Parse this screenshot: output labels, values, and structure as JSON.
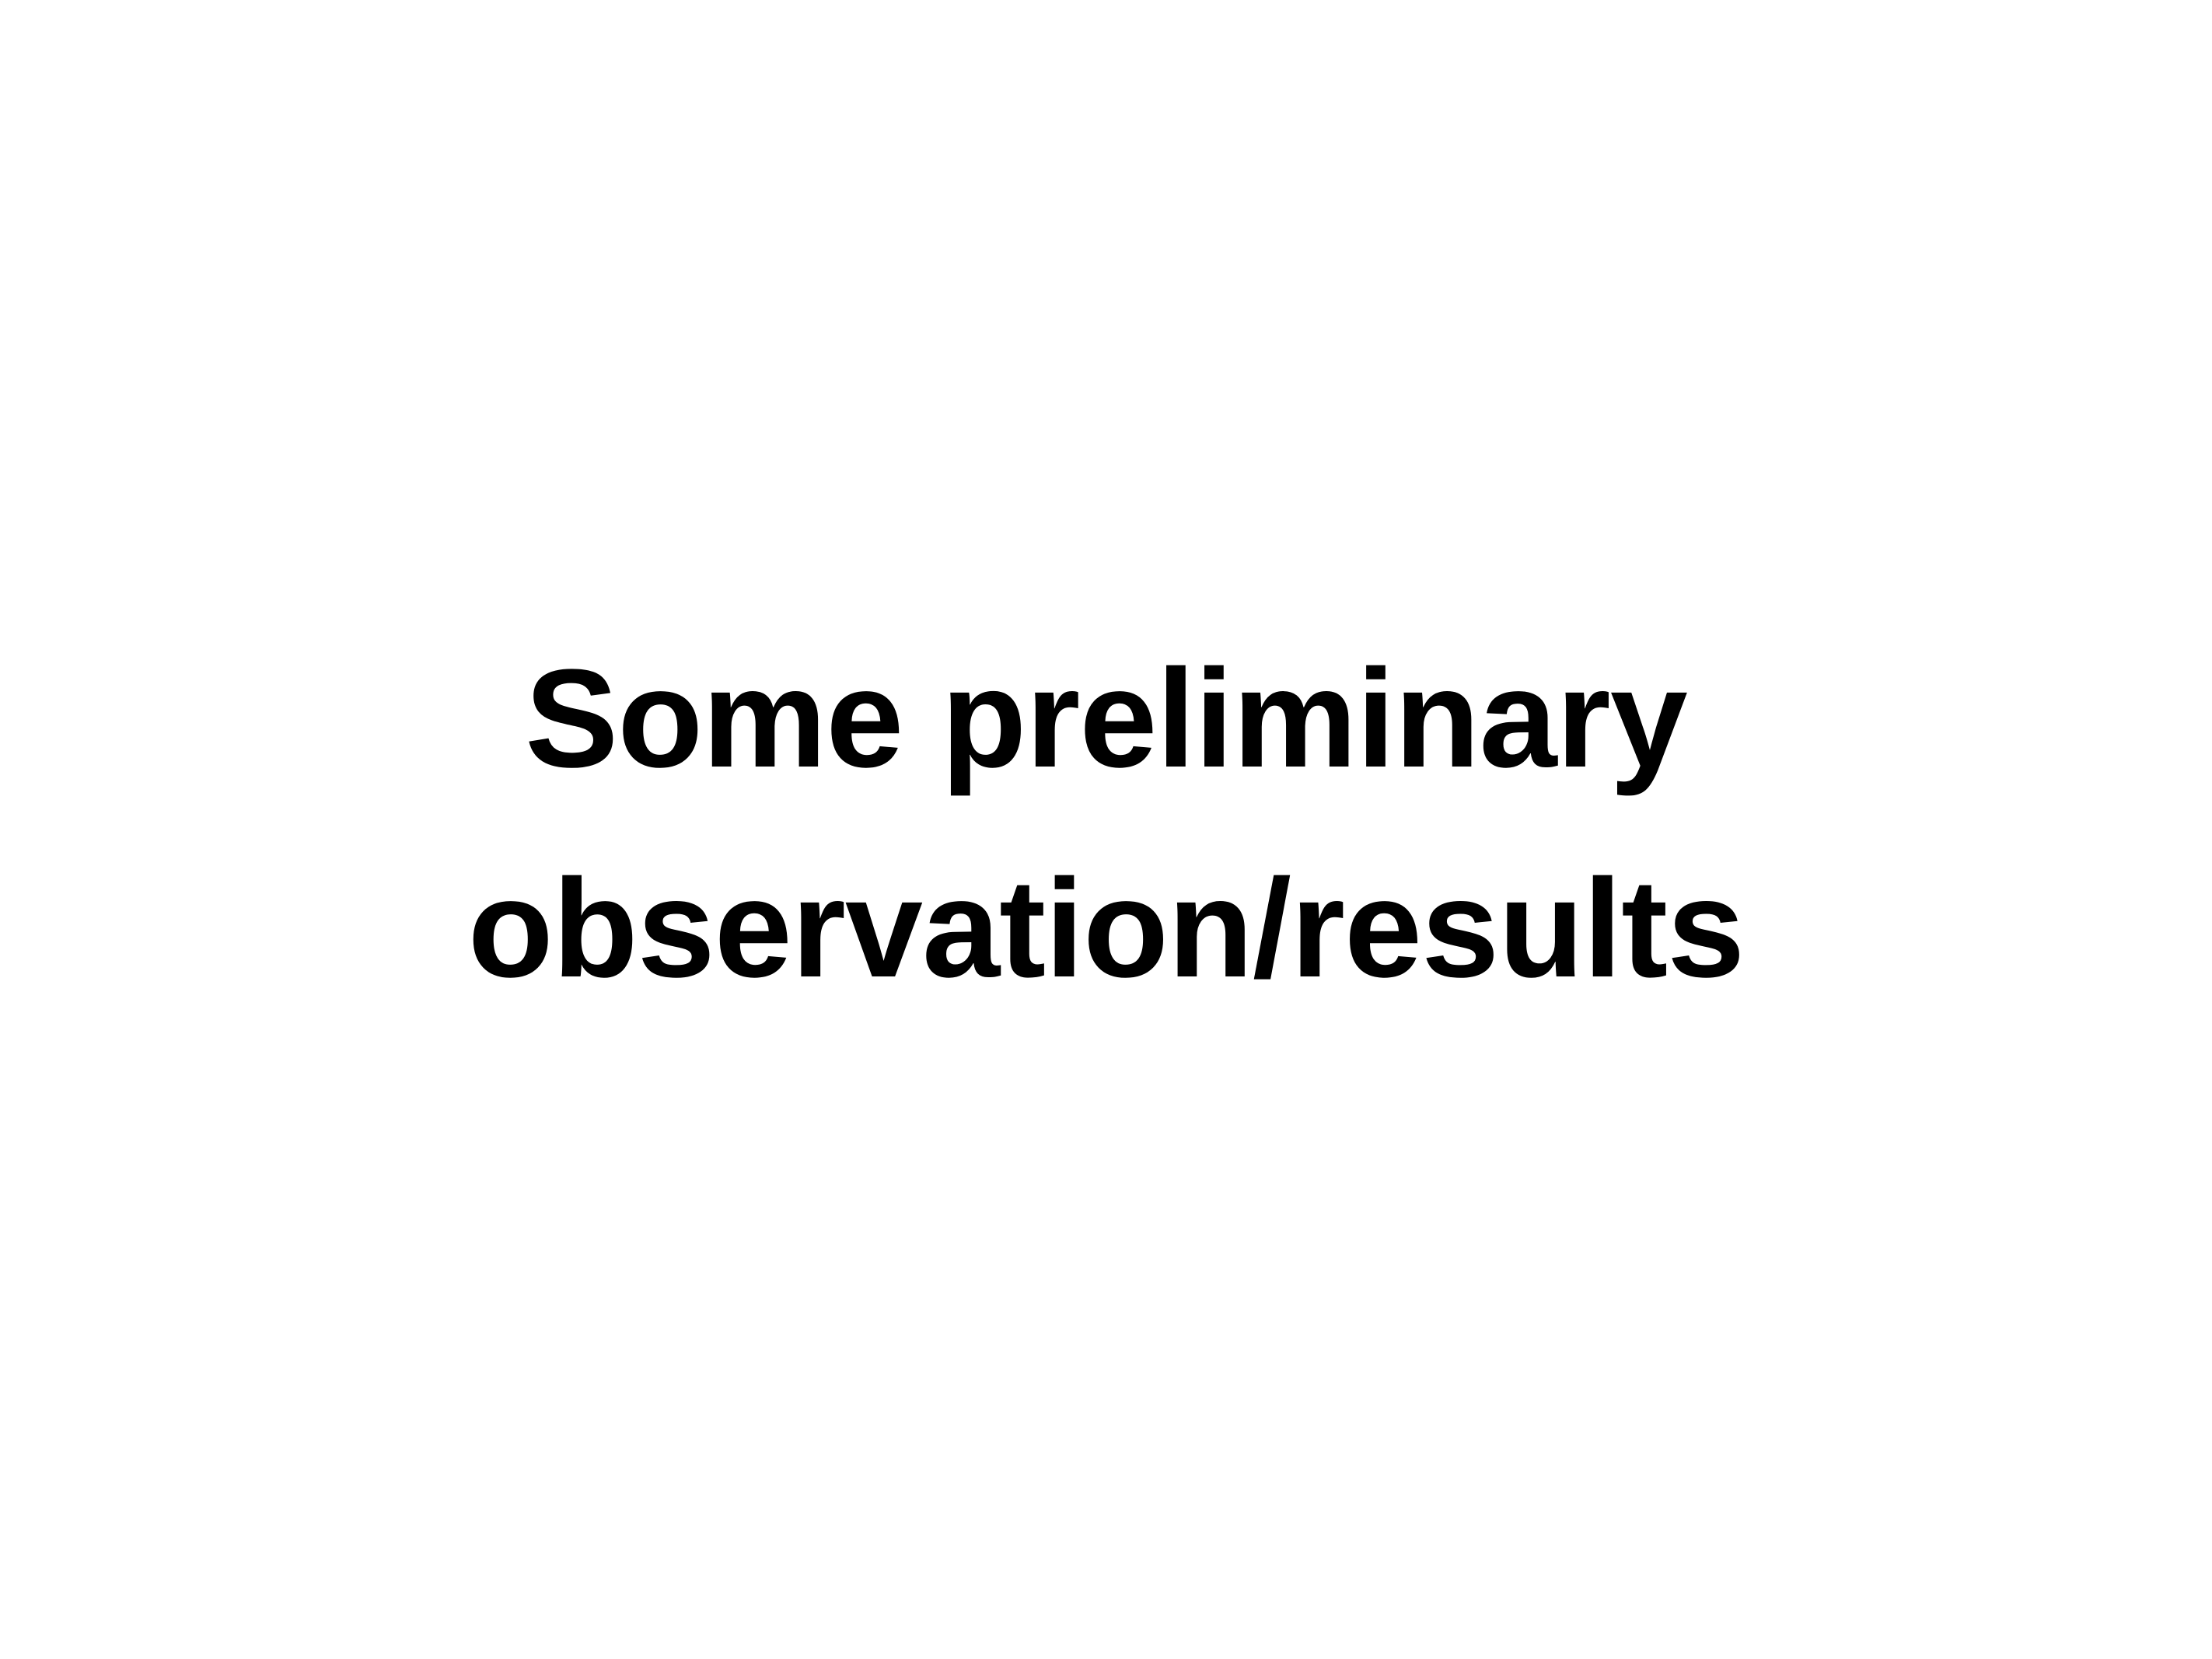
{
  "slide": {
    "title_lines": [
      "Some preliminary",
      "observation/results"
    ]
  }
}
